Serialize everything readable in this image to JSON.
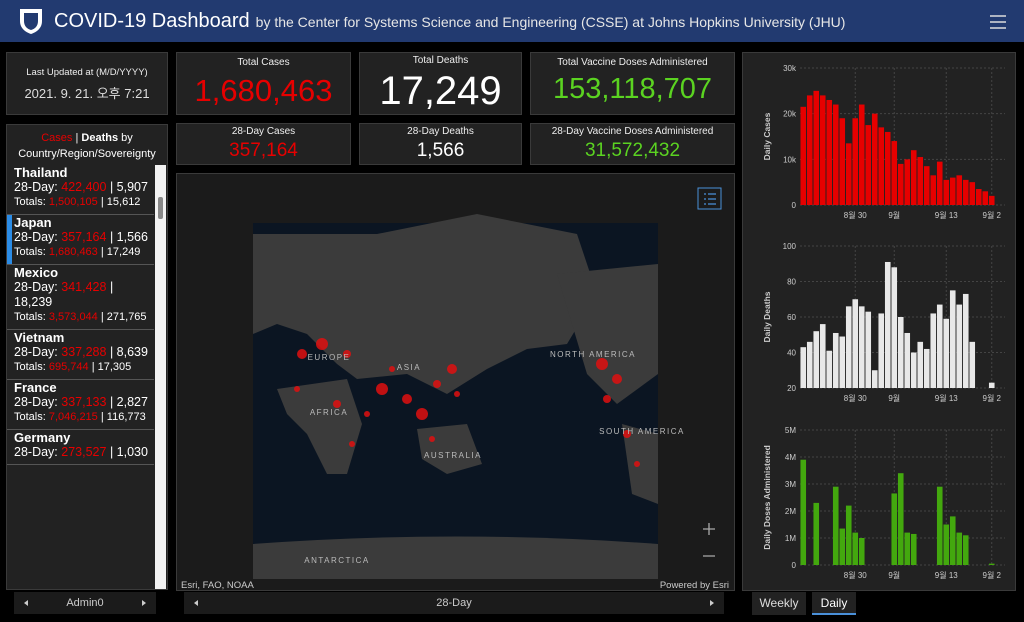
{
  "header": {
    "title": "COVID-19 Dashboard",
    "subtitle": "by the Center for Systems Science and Engineering (CSSE) at Johns Hopkins University (JHU)"
  },
  "last_updated": {
    "label": "Last Updated at (M/D/YYYY)",
    "value": "2021. 9. 21. 오후 7:21"
  },
  "stats": {
    "total_cases": {
      "label": "Total Cases",
      "value": "1,680,463"
    },
    "total_deaths": {
      "label": "Total Deaths",
      "value": "17,249"
    },
    "total_vaccine": {
      "label": "Total Vaccine Doses Administered",
      "value": "153,118,707"
    },
    "cases_28": {
      "label": "28-Day Cases",
      "value": "357,164"
    },
    "deaths_28": {
      "label": "28-Day Deaths",
      "value": "1,566"
    },
    "vaccine_28": {
      "label": "28-Day Vaccine Doses Administered",
      "value": "31,572,432"
    }
  },
  "list": {
    "tab_cases": "Cases",
    "separator": "|",
    "tab_deaths": "Deaths",
    "title_rest": "by Country/Region/Sovereignty",
    "labels": {
      "day28": "28-Day:",
      "totals": "Totals:"
    },
    "selected_index": 1,
    "items": [
      {
        "name": "Thailand",
        "cases_28": "422,400",
        "deaths_28": "5,907",
        "cases_total": "1,500,105",
        "deaths_total": "15,612"
      },
      {
        "name": "Japan",
        "cases_28": "357,164",
        "deaths_28": "1,566",
        "cases_total": "1,680,463",
        "deaths_total": "17,249"
      },
      {
        "name": "Mexico",
        "cases_28": "341,428",
        "deaths_28": "18,239",
        "cases_total": "3,573,044",
        "deaths_total": "271,765"
      },
      {
        "name": "Vietnam",
        "cases_28": "337,288",
        "deaths_28": "8,639",
        "cases_total": "695,744",
        "deaths_total": "17,305"
      },
      {
        "name": "France",
        "cases_28": "337,133",
        "deaths_28": "2,827",
        "cases_total": "7,046,215",
        "deaths_total": "116,773"
      },
      {
        "name": "Germany",
        "cases_28": "273,527",
        "deaths_28": "1,030"
      }
    ]
  },
  "map": {
    "labels": [
      "EUROPE",
      "ASIA",
      "AFRICA",
      "AUSTRALIA",
      "NORTH AMERICA",
      "SOUTH AMERICA",
      "ANTARCTICA"
    ],
    "attribution": "Esri, FAO, NOAA",
    "powered": "Powered by Esri"
  },
  "nav": {
    "left": "Admin0",
    "middle": "28-Day"
  },
  "tabs": [
    "Weekly",
    "Daily"
  ],
  "chart_data": [
    {
      "type": "bar",
      "ylabel": "Daily Cases",
      "color": "#e60000",
      "categories": [
        null,
        null,
        null,
        null,
        null,
        null,
        null,
        null,
        "8월 30",
        null,
        null,
        null,
        null,
        null,
        "9월",
        null,
        null,
        null,
        null,
        null,
        null,
        null,
        "9월 13",
        null,
        null,
        null,
        null,
        null,
        null,
        "9월 2"
      ],
      "values": [
        21500,
        24000,
        25000,
        24000,
        23000,
        22000,
        19000,
        13500,
        19000,
        22000,
        17500,
        20000,
        17000,
        16000,
        14000,
        9000,
        10000,
        12000,
        10500,
        8500,
        6500,
        9500,
        5500,
        6000,
        6500,
        5500,
        5000,
        3500,
        3000,
        2000
      ],
      "ylim": [
        0,
        30000
      ],
      "yticks": [
        0,
        {
          "value": 10000,
          "label": "10k"
        },
        {
          "value": 20000,
          "label": "20k"
        },
        {
          "value": 30000,
          "label": "30k"
        }
      ],
      "grid": true
    },
    {
      "type": "bar",
      "ylabel": "Daily Deaths",
      "color": "#e8e8e8",
      "categories": [
        null,
        null,
        null,
        null,
        null,
        null,
        null,
        null,
        "8월 30",
        null,
        null,
        null,
        null,
        null,
        "9월",
        null,
        null,
        null,
        null,
        null,
        null,
        null,
        "9월 13",
        null,
        null,
        null,
        null,
        null,
        null,
        "9월 2"
      ],
      "values": [
        43,
        46,
        52,
        56,
        41,
        51,
        49,
        66,
        70,
        66,
        63,
        30,
        62,
        91,
        88,
        60,
        51,
        40,
        46,
        42,
        62,
        67,
        59,
        75,
        67,
        73,
        46,
        null,
        null,
        23
      ],
      "ylim": [
        20,
        100
      ],
      "yticks": [
        20,
        40,
        60,
        80,
        100
      ],
      "grid": true
    },
    {
      "type": "bar",
      "ylabel": "Daily Doses Administered",
      "color": "#43a80e",
      "categories": [
        null,
        null,
        null,
        null,
        null,
        null,
        null,
        null,
        "8월 30",
        null,
        null,
        null,
        null,
        null,
        "9월",
        null,
        null,
        null,
        null,
        null,
        null,
        null,
        "9월 13",
        null,
        null,
        null,
        null,
        null,
        null,
        "9월 2"
      ],
      "values": [
        3900000,
        null,
        2300000,
        null,
        null,
        2900000,
        1350000,
        2200000,
        1200000,
        1000000,
        null,
        null,
        null,
        null,
        2650000,
        3400000,
        1200000,
        1150000,
        null,
        null,
        null,
        2900000,
        1500000,
        1800000,
        1200000,
        1100000,
        null,
        null,
        null,
        50000
      ],
      "ylim": [
        0,
        5000000
      ],
      "yticks": [
        0,
        {
          "value": 1000000,
          "label": "1M"
        },
        {
          "value": 2000000,
          "label": "2M"
        },
        {
          "value": 3000000,
          "label": "3M"
        },
        {
          "value": 4000000,
          "label": "4M"
        },
        {
          "value": 5000000,
          "label": "5M"
        }
      ],
      "grid": true
    }
  ]
}
